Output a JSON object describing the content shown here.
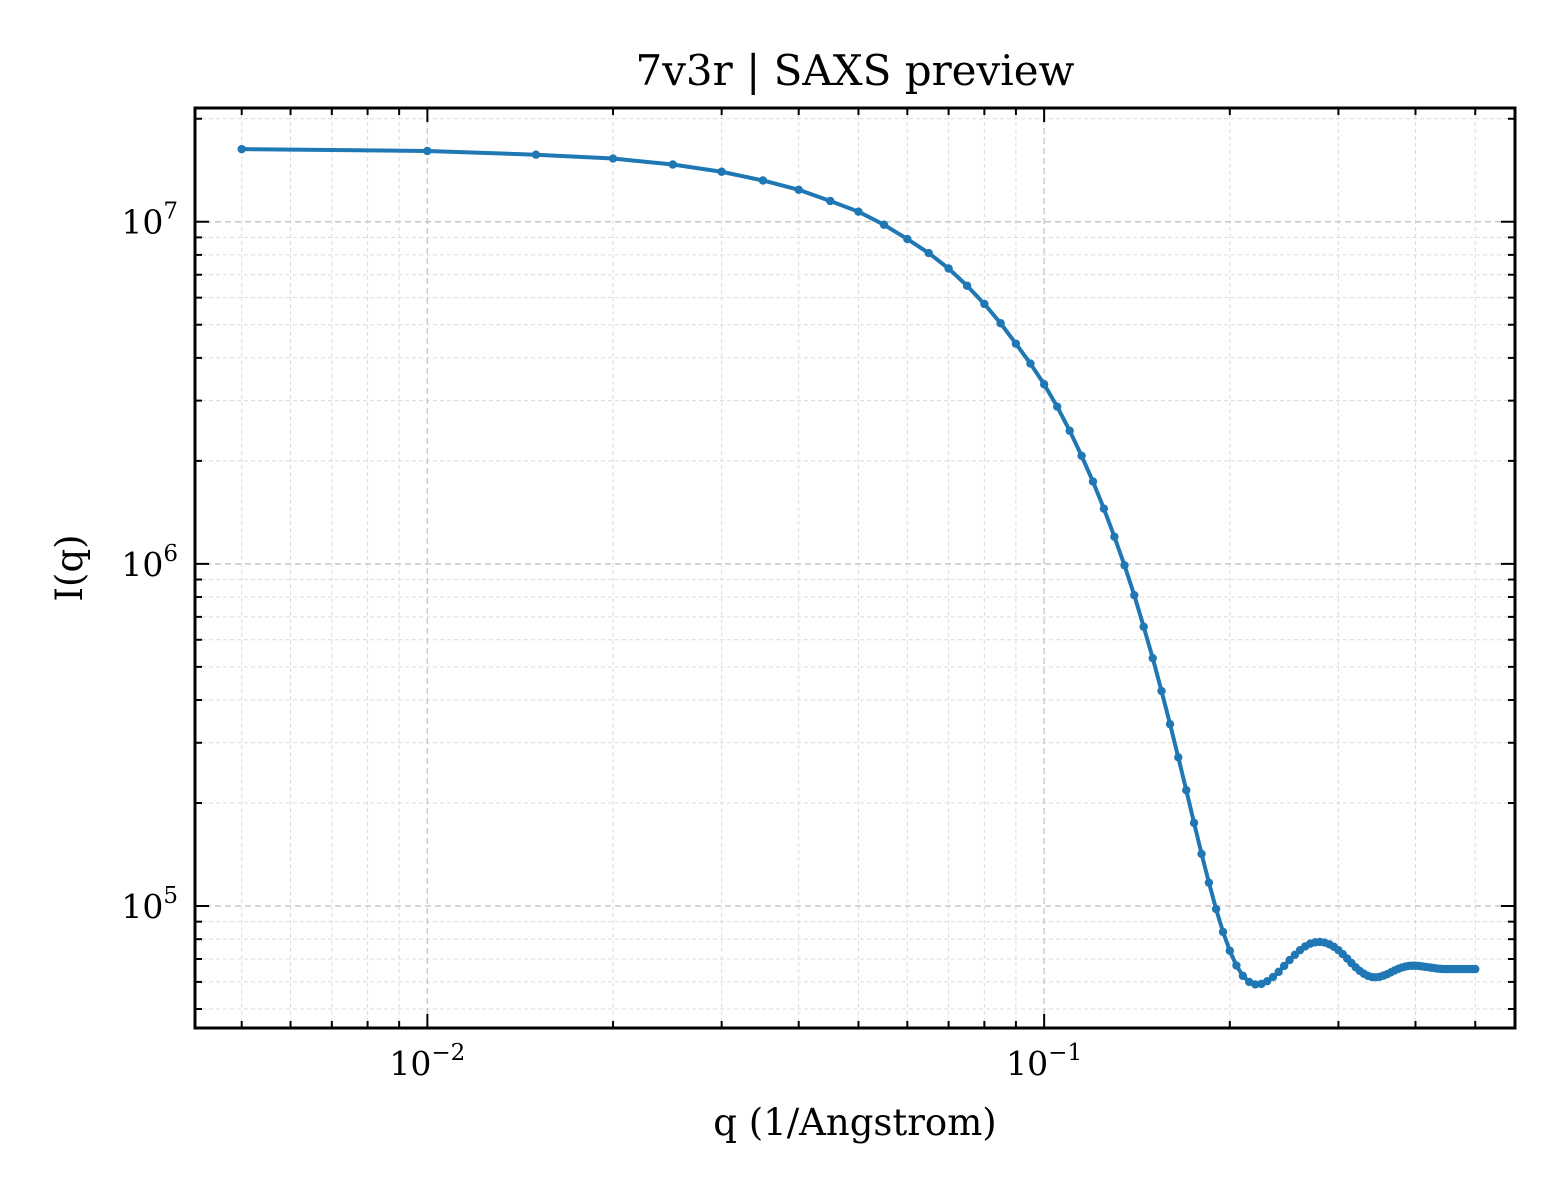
{
  "chart_data": {
    "type": "line",
    "title": "7v3r | SAXS preview",
    "xlabel": "q (1/Angstrom)",
    "ylabel": "I(q)",
    "x_scale": "log",
    "y_scale": "log",
    "xlim": [
      0.0042,
      0.58
    ],
    "ylim": [
      44000,
      21500000
    ],
    "grid": true,
    "grid_style": "dashed, major and minor",
    "legend": "none",
    "marker": "small circle",
    "color": "#1f77b4",
    "x_ticks": [
      {
        "value": 0.01,
        "base": "10",
        "exp": "−2"
      },
      {
        "value": 0.1,
        "base": "10",
        "exp": "−1"
      }
    ],
    "y_ticks": [
      {
        "value": 100000,
        "base": "10",
        "exp": "5"
      },
      {
        "value": 1000000,
        "base": "10",
        "exp": "6"
      },
      {
        "value": 10000000,
        "base": "10",
        "exp": "7"
      }
    ],
    "series": [
      {
        "x": [
          0.005,
          0.01,
          0.015,
          0.02,
          0.025,
          0.03,
          0.035,
          0.04,
          0.045,
          0.05,
          0.055,
          0.06,
          0.065,
          0.07,
          0.075,
          0.08,
          0.085,
          0.09,
          0.095,
          0.1,
          0.105,
          0.11,
          0.115,
          0.12,
          0.125,
          0.13,
          0.135,
          0.14,
          0.145,
          0.15,
          0.155,
          0.16,
          0.165,
          0.17,
          0.175,
          0.18,
          0.185,
          0.19,
          0.195,
          0.2,
          0.205,
          0.21,
          0.215,
          0.22,
          0.225,
          0.23,
          0.235,
          0.24,
          0.245,
          0.25,
          0.255,
          0.26,
          0.265,
          0.27,
          0.275,
          0.28,
          0.285,
          0.29,
          0.295,
          0.3,
          0.305,
          0.31,
          0.315,
          0.32,
          0.325,
          0.33,
          0.335,
          0.34,
          0.345,
          0.35,
          0.355,
          0.36,
          0.365,
          0.37,
          0.375,
          0.38,
          0.385,
          0.39,
          0.395,
          0.4,
          0.405,
          0.41,
          0.415,
          0.42,
          0.425,
          0.43,
          0.435,
          0.44,
          0.445,
          0.45,
          0.455,
          0.46,
          0.465,
          0.47,
          0.475,
          0.48,
          0.485,
          0.49,
          0.495,
          0.5
        ],
        "y": [
          16300000,
          16100000,
          15700000,
          15300000,
          14700000,
          14000000,
          13200000,
          12400000,
          11500000,
          10700000,
          9800000,
          8900000,
          8100000,
          7300000,
          6500000,
          5750000,
          5050000,
          4400000,
          3850000,
          3350000,
          2880000,
          2450000,
          2070000,
          1740000,
          1450000,
          1200000,
          990000,
          810000,
          655000,
          530000,
          425000,
          340000,
          272000,
          218000,
          175000,
          142000,
          117000,
          98000,
          84000,
          74000,
          67000,
          62500,
          60000,
          59000,
          59200,
          60300,
          62000,
          64200,
          66800,
          69500,
          72000,
          74300,
          76200,
          77600,
          78300,
          78500,
          78200,
          77300,
          76000,
          74300,
          72300,
          70200,
          68100,
          66200,
          64600,
          63400,
          62500,
          62000,
          61900,
          62100,
          62600,
          63200,
          64000,
          64800,
          65500,
          66100,
          66500,
          66800,
          66900,
          66900,
          66800,
          66600,
          66400,
          66200,
          66000,
          65800,
          65600,
          65500,
          65400,
          65400,
          65400,
          65400,
          65400,
          65400,
          65400,
          65400,
          65400,
          65400,
          65400,
          65400
        ]
      }
    ]
  }
}
